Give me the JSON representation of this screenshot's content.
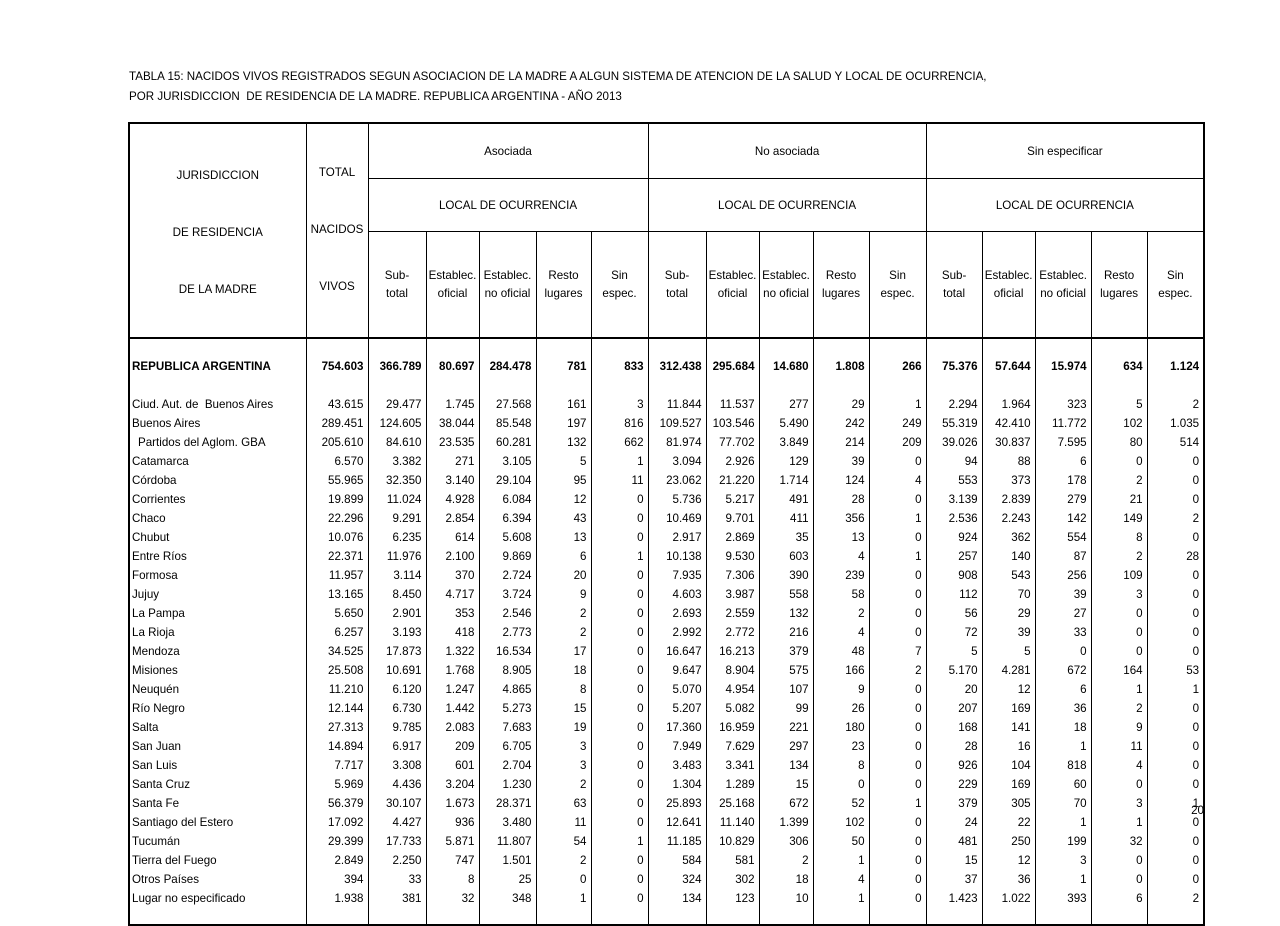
{
  "page": {
    "title_line1": "TABLA 15: NACIDOS VIVOS REGISTRADOS SEGUN ASOCIACION DE LA MADRE A ALGUN SISTEMA DE ATENCION DE LA SALUD Y LOCAL DE OCURRENCIA,",
    "title_line2": "POR JURISDICCION  DE RESIDENCIA DE LA MADRE. REPUBLICA ARGENTINA - AÑO 2013",
    "page_number": "20"
  },
  "table": {
    "row_header": [
      "JURISDICCION",
      "DE RESIDENCIA",
      "DE LA MADRE"
    ],
    "total_header": [
      "TOTAL",
      "NACIDOS",
      "VIVOS"
    ],
    "groups": [
      {
        "label": "Asociada",
        "sub": "LOCAL DE OCURRENCIA"
      },
      {
        "label": "No asociada",
        "sub": "LOCAL DE OCURRENCIA"
      },
      {
        "label": "Sin especificar",
        "sub": "LOCAL DE OCURRENCIA"
      }
    ],
    "sub_columns": [
      [
        "Sub-",
        "total"
      ],
      [
        "Establec.",
        "oficial"
      ],
      [
        "Establec.",
        "no oficial"
      ],
      [
        "Resto",
        "lugares"
      ],
      [
        "Sin",
        "espec."
      ]
    ],
    "total_row": {
      "label": "REPUBLICA ARGENTINA",
      "indent": false,
      "total": "754.603",
      "values": [
        "366.789",
        "80.697",
        "284.478",
        "781",
        "833",
        "312.438",
        "295.684",
        "14.680",
        "1.808",
        "266",
        "75.376",
        "57.644",
        "15.974",
        "634",
        "1.124"
      ]
    },
    "rows": [
      {
        "label": "Ciud. Aut. de  Buenos Aires",
        "indent": false,
        "total": "43.615",
        "values": [
          "29.477",
          "1.745",
          "27.568",
          "161",
          "3",
          "11.844",
          "11.537",
          "277",
          "29",
          "1",
          "2.294",
          "1.964",
          "323",
          "5",
          "2"
        ]
      },
      {
        "label": "Buenos Aires",
        "indent": false,
        "total": "289.451",
        "values": [
          "124.605",
          "38.044",
          "85.548",
          "197",
          "816",
          "109.527",
          "103.546",
          "5.490",
          "242",
          "249",
          "55.319",
          "42.410",
          "11.772",
          "102",
          "1.035"
        ]
      },
      {
        "label": "Partidos del Aglom. GBA",
        "indent": true,
        "total": "205.610",
        "values": [
          "84.610",
          "23.535",
          "60.281",
          "132",
          "662",
          "81.974",
          "77.702",
          "3.849",
          "214",
          "209",
          "39.026",
          "30.837",
          "7.595",
          "80",
          "514"
        ]
      },
      {
        "label": "Catamarca",
        "indent": false,
        "total": "6.570",
        "values": [
          "3.382",
          "271",
          "3.105",
          "5",
          "1",
          "3.094",
          "2.926",
          "129",
          "39",
          "0",
          "94",
          "88",
          "6",
          "0",
          "0"
        ]
      },
      {
        "label": "Córdoba",
        "indent": false,
        "total": "55.965",
        "values": [
          "32.350",
          "3.140",
          "29.104",
          "95",
          "11",
          "23.062",
          "21.220",
          "1.714",
          "124",
          "4",
          "553",
          "373",
          "178",
          "2",
          "0"
        ]
      },
      {
        "label": "Corrientes",
        "indent": false,
        "total": "19.899",
        "values": [
          "11.024",
          "4.928",
          "6.084",
          "12",
          "0",
          "5.736",
          "5.217",
          "491",
          "28",
          "0",
          "3.139",
          "2.839",
          "279",
          "21",
          "0"
        ]
      },
      {
        "label": "Chaco",
        "indent": false,
        "total": "22.296",
        "values": [
          "9.291",
          "2.854",
          "6.394",
          "43",
          "0",
          "10.469",
          "9.701",
          "411",
          "356",
          "1",
          "2.536",
          "2.243",
          "142",
          "149",
          "2"
        ]
      },
      {
        "label": "Chubut",
        "indent": false,
        "total": "10.076",
        "values": [
          "6.235",
          "614",
          "5.608",
          "13",
          "0",
          "2.917",
          "2.869",
          "35",
          "13",
          "0",
          "924",
          "362",
          "554",
          "8",
          "0"
        ]
      },
      {
        "label": "Entre Ríos",
        "indent": false,
        "total": "22.371",
        "values": [
          "11.976",
          "2.100",
          "9.869",
          "6",
          "1",
          "10.138",
          "9.530",
          "603",
          "4",
          "1",
          "257",
          "140",
          "87",
          "2",
          "28"
        ]
      },
      {
        "label": "Formosa",
        "indent": false,
        "total": "11.957",
        "values": [
          "3.114",
          "370",
          "2.724",
          "20",
          "0",
          "7.935",
          "7.306",
          "390",
          "239",
          "0",
          "908",
          "543",
          "256",
          "109",
          "0"
        ]
      },
      {
        "label": "Jujuy",
        "indent": false,
        "total": "13.165",
        "values": [
          "8.450",
          "4.717",
          "3.724",
          "9",
          "0",
          "4.603",
          "3.987",
          "558",
          "58",
          "0",
          "112",
          "70",
          "39",
          "3",
          "0"
        ]
      },
      {
        "label": "La Pampa",
        "indent": false,
        "total": "5.650",
        "values": [
          "2.901",
          "353",
          "2.546",
          "2",
          "0",
          "2.693",
          "2.559",
          "132",
          "2",
          "0",
          "56",
          "29",
          "27",
          "0",
          "0"
        ]
      },
      {
        "label": "La Rioja",
        "indent": false,
        "total": "6.257",
        "values": [
          "3.193",
          "418",
          "2.773",
          "2",
          "0",
          "2.992",
          "2.772",
          "216",
          "4",
          "0",
          "72",
          "39",
          "33",
          "0",
          "0"
        ]
      },
      {
        "label": "Mendoza",
        "indent": false,
        "total": "34.525",
        "values": [
          "17.873",
          "1.322",
          "16.534",
          "17",
          "0",
          "16.647",
          "16.213",
          "379",
          "48",
          "7",
          "5",
          "5",
          "0",
          "0",
          "0"
        ]
      },
      {
        "label": "Misiones",
        "indent": false,
        "total": "25.508",
        "values": [
          "10.691",
          "1.768",
          "8.905",
          "18",
          "0",
          "9.647",
          "8.904",
          "575",
          "166",
          "2",
          "5.170",
          "4.281",
          "672",
          "164",
          "53"
        ]
      },
      {
        "label": "Neuquén",
        "indent": false,
        "total": "11.210",
        "values": [
          "6.120",
          "1.247",
          "4.865",
          "8",
          "0",
          "5.070",
          "4.954",
          "107",
          "9",
          "0",
          "20",
          "12",
          "6",
          "1",
          "1"
        ]
      },
      {
        "label": "Río Negro",
        "indent": false,
        "total": "12.144",
        "values": [
          "6.730",
          "1.442",
          "5.273",
          "15",
          "0",
          "5.207",
          "5.082",
          "99",
          "26",
          "0",
          "207",
          "169",
          "36",
          "2",
          "0"
        ]
      },
      {
        "label": "Salta",
        "indent": false,
        "total": "27.313",
        "values": [
          "9.785",
          "2.083",
          "7.683",
          "19",
          "0",
          "17.360",
          "16.959",
          "221",
          "180",
          "0",
          "168",
          "141",
          "18",
          "9",
          "0"
        ]
      },
      {
        "label": "San Juan",
        "indent": false,
        "total": "14.894",
        "values": [
          "6.917",
          "209",
          "6.705",
          "3",
          "0",
          "7.949",
          "7.629",
          "297",
          "23",
          "0",
          "28",
          "16",
          "1",
          "11",
          "0"
        ]
      },
      {
        "label": "San Luis",
        "indent": false,
        "total": "7.717",
        "values": [
          "3.308",
          "601",
          "2.704",
          "3",
          "0",
          "3.483",
          "3.341",
          "134",
          "8",
          "0",
          "926",
          "104",
          "818",
          "4",
          "0"
        ]
      },
      {
        "label": "Santa Cruz",
        "indent": false,
        "total": "5.969",
        "values": [
          "4.436",
          "3.204",
          "1.230",
          "2",
          "0",
          "1.304",
          "1.289",
          "15",
          "0",
          "0",
          "229",
          "169",
          "60",
          "0",
          "0"
        ]
      },
      {
        "label": "Santa Fe",
        "indent": false,
        "total": "56.379",
        "values": [
          "30.107",
          "1.673",
          "28.371",
          "63",
          "0",
          "25.893",
          "25.168",
          "672",
          "52",
          "1",
          "379",
          "305",
          "70",
          "3",
          "1"
        ]
      },
      {
        "label": "Santiago del Estero",
        "indent": false,
        "total": "17.092",
        "values": [
          "4.427",
          "936",
          "3.480",
          "11",
          "0",
          "12.641",
          "11.140",
          "1.399",
          "102",
          "0",
          "24",
          "22",
          "1",
          "1",
          "0"
        ]
      },
      {
        "label": "Tucumán",
        "indent": false,
        "total": "29.399",
        "values": [
          "17.733",
          "5.871",
          "11.807",
          "54",
          "1",
          "11.185",
          "10.829",
          "306",
          "50",
          "0",
          "481",
          "250",
          "199",
          "32",
          "0"
        ]
      },
      {
        "label": "Tierra del Fuego",
        "indent": false,
        "total": "2.849",
        "values": [
          "2.250",
          "747",
          "1.501",
          "2",
          "0",
          "584",
          "581",
          "2",
          "1",
          "0",
          "15",
          "12",
          "3",
          "0",
          "0"
        ]
      },
      {
        "label": "Otros Países",
        "indent": false,
        "total": "394",
        "values": [
          "33",
          "8",
          "25",
          "0",
          "0",
          "324",
          "302",
          "18",
          "4",
          "0",
          "37",
          "36",
          "1",
          "0",
          "0"
        ]
      },
      {
        "label": "Lugar no especificado",
        "indent": false,
        "total": "1.938",
        "values": [
          "381",
          "32",
          "348",
          "1",
          "0",
          "134",
          "123",
          "10",
          "1",
          "0",
          "1.423",
          "1.022",
          "393",
          "6",
          "2"
        ]
      }
    ]
  }
}
